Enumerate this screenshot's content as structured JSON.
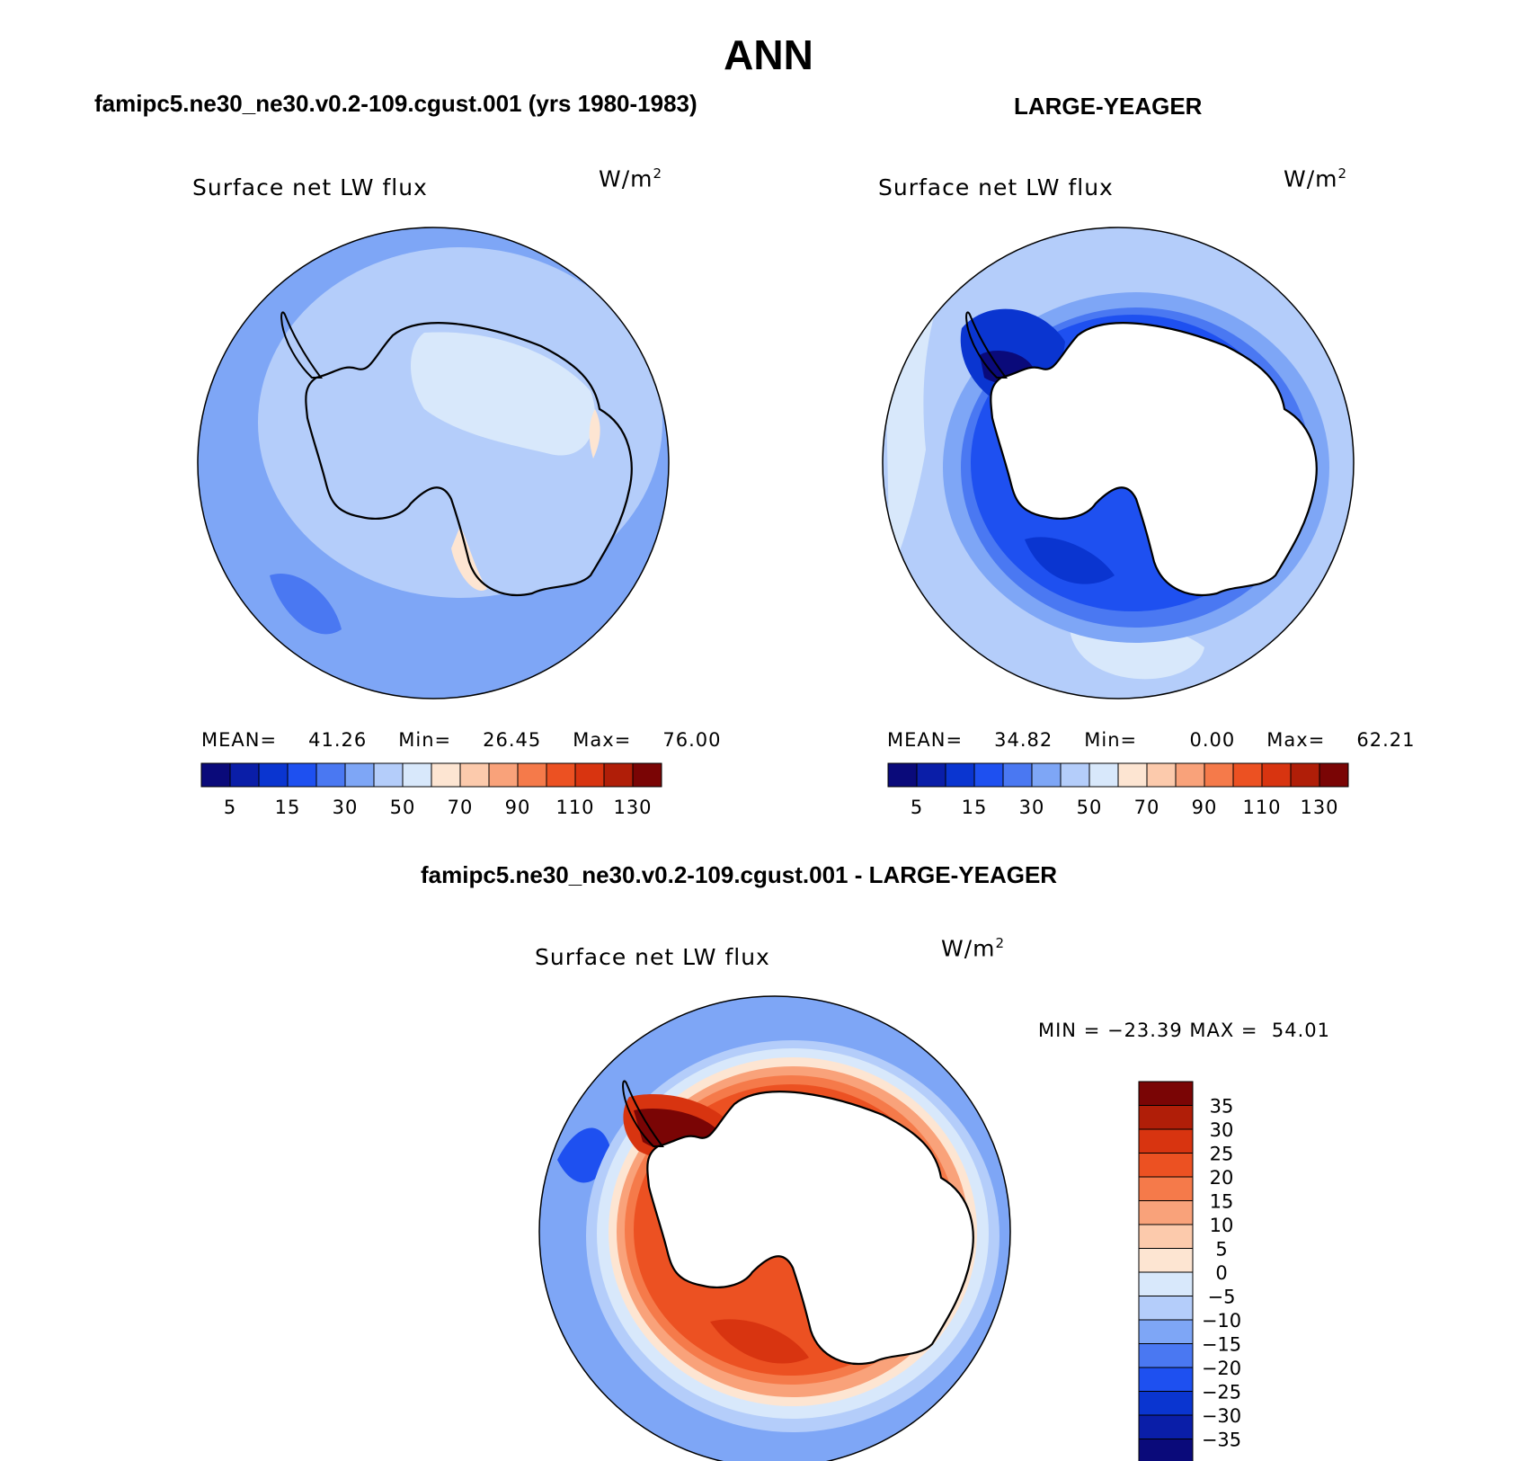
{
  "main_title": "ANN",
  "panels": {
    "top_left": {
      "case_title": "famipc5.ne30_ne30.v0.2-109.cgust.001 (yrs 1980-1983)",
      "variable": "Surface net LW flux",
      "units": "W/m",
      "units_exp": "2",
      "mean_label": "MEAN=",
      "mean": "41.26",
      "min_label": "Min=",
      "min": "26.45",
      "max_label": "Max=",
      "max": "76.00"
    },
    "top_right": {
      "case_title": "LARGE-YEAGER",
      "variable": "Surface net LW flux",
      "units": "W/m",
      "units_exp": "2",
      "mean_label": "MEAN=",
      "mean": "34.82",
      "min_label": "Min=",
      "min": "0.00",
      "max_label": "Max=",
      "max": "62.21"
    },
    "bottom": {
      "case_title": "famipc5.ne30_ne30.v0.2-109.cgust.001 - LARGE-YEAGER",
      "variable": "Surface net LW flux",
      "units": "W/m",
      "units_exp": "2",
      "minmax_text": "MIN = −23.39 MAX =  54.01"
    }
  },
  "chart_data": [
    {
      "type": "heatmap",
      "projection": "south-polar-stereographic",
      "title": "famipc5.ne30_ne30.v0.2-109.cgust.001 (yrs 1980-1983)",
      "variable": "Surface net LW flux",
      "units": "W/m2",
      "colorbar": {
        "orientation": "horizontal",
        "tick_labels": [
          "5",
          "15",
          "30",
          "50",
          "70",
          "90",
          "110",
          "130"
        ],
        "colors": [
          "#0a0a7a",
          "#0a1ea8",
          "#0a35d0",
          "#1e50f0",
          "#4a78f2",
          "#7ea6f6",
          "#b4cdfa",
          "#d8e8fb",
          "#fde5d2",
          "#fccaac",
          "#f9a27a",
          "#f57a4a",
          "#ec5122",
          "#d83410",
          "#b01e08",
          "#7a0505"
        ]
      },
      "stats": {
        "mean": 41.26,
        "min": 26.45,
        "max": 76.0
      }
    },
    {
      "type": "heatmap",
      "projection": "south-polar-stereographic",
      "title": "LARGE-YEAGER",
      "variable": "Surface net LW flux",
      "units": "W/m2",
      "colorbar": {
        "orientation": "horizontal",
        "tick_labels": [
          "5",
          "15",
          "30",
          "50",
          "70",
          "90",
          "110",
          "130"
        ],
        "colors": [
          "#0a0a7a",
          "#0a1ea8",
          "#0a35d0",
          "#1e50f0",
          "#4a78f2",
          "#7ea6f6",
          "#b4cdfa",
          "#d8e8fb",
          "#fde5d2",
          "#fccaac",
          "#f9a27a",
          "#f57a4a",
          "#ec5122",
          "#d83410",
          "#b01e08",
          "#7a0505"
        ]
      },
      "stats": {
        "mean": 34.82,
        "min": 0.0,
        "max": 62.21
      }
    },
    {
      "type": "heatmap",
      "projection": "south-polar-stereographic",
      "title": "famipc5.ne30_ne30.v0.2-109.cgust.001 - LARGE-YEAGER",
      "variable": "Surface net LW flux",
      "units": "W/m2",
      "colorbar": {
        "orientation": "vertical",
        "tick_labels": [
          "35",
          "30",
          "25",
          "20",
          "15",
          "10",
          "5",
          "0",
          "−5",
          "−10",
          "−15",
          "−20",
          "−25",
          "−30",
          "−35"
        ],
        "colors": [
          "#7a0505",
          "#b01e08",
          "#d83410",
          "#ec5122",
          "#f57a4a",
          "#f9a27a",
          "#fccaac",
          "#fde5d2",
          "#d8e8fb",
          "#b4cdfa",
          "#7ea6f6",
          "#4a78f2",
          "#1e50f0",
          "#0a35d0",
          "#0a1ea8",
          "#0a0a7a"
        ]
      },
      "stats": {
        "min": -23.39,
        "max": 54.01
      }
    }
  ]
}
